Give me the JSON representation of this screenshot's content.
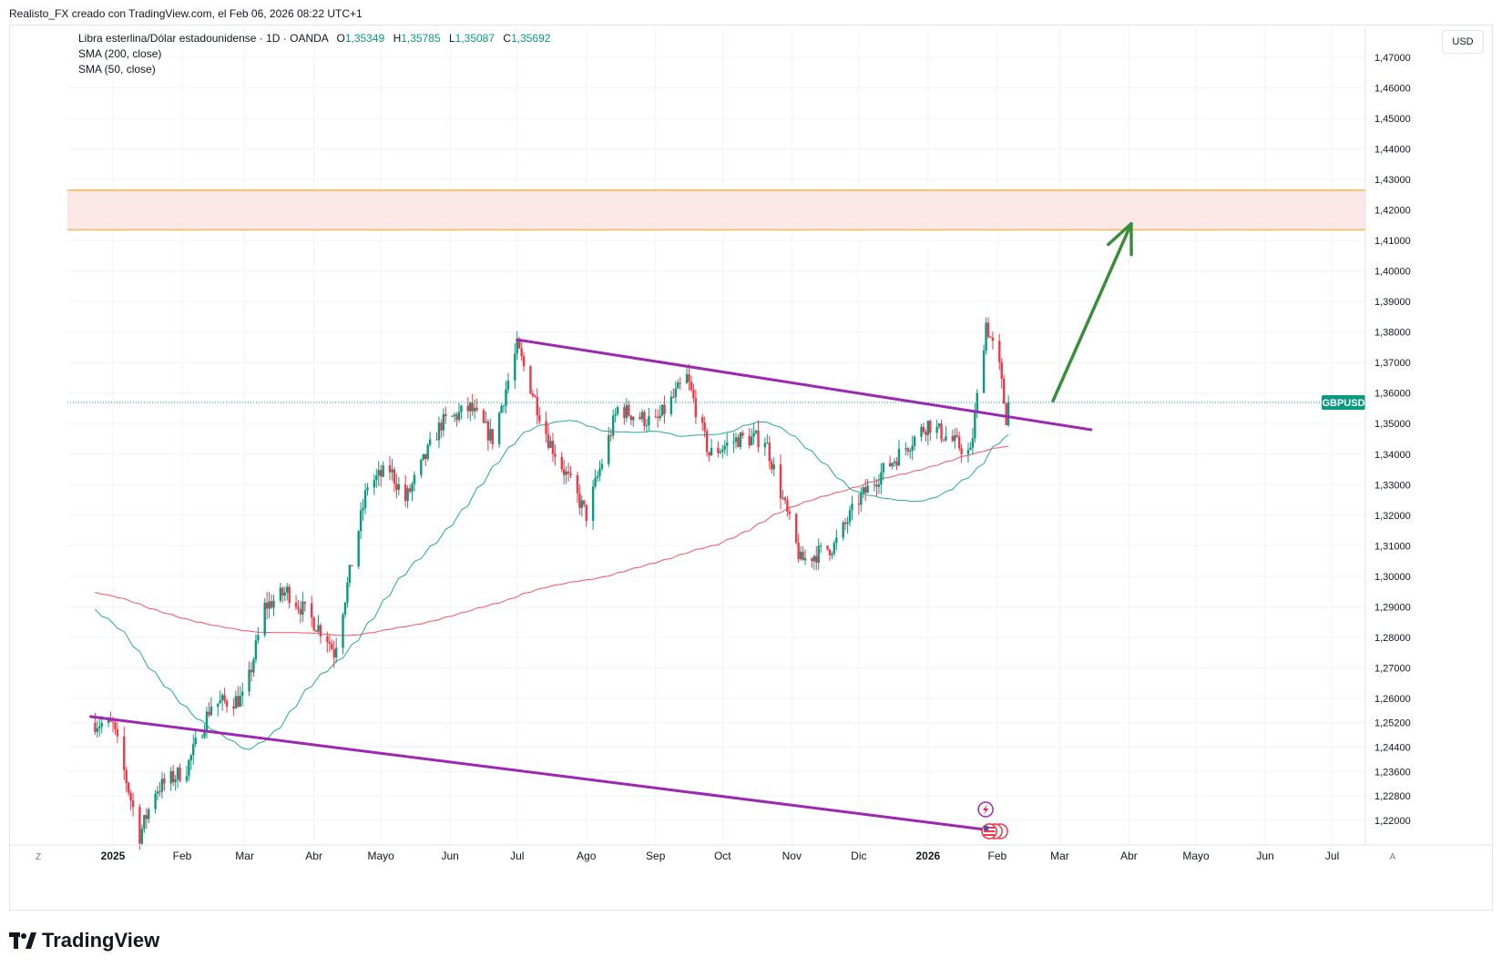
{
  "header": {
    "text": "Realisto_FX creado con TradingView.com, el Feb 06, 2026 08:22 UTC+1"
  },
  "legend": {
    "symbol": "Libra esterlina/Dólar estadounidense · 1D · OANDA",
    "open_label": "O",
    "open": "1,35349",
    "high_label": "H",
    "high": "1,35785",
    "low_label": "L",
    "low": "1,35087",
    "close_label": "C",
    "close": "1,35692",
    "sma200": "SMA (200, close)",
    "sma50": "SMA (50, close)"
  },
  "currency_button": "USD",
  "price_badge": "GBPUSD",
  "footer": {
    "brand": "TradingView",
    "icon": "tradingview-logo-icon"
  },
  "timeaxis_buttons": {
    "left": "Z",
    "right": "A"
  },
  "colors": {
    "up": "#089981",
    "down": "#f23645",
    "sma50": "#22ab94",
    "sma200": "#f7525f",
    "trendline": "#9c27b0",
    "arrow": "#388e3c",
    "zone_fill": "#fde8e8",
    "zone_border": "#ffb74d"
  },
  "chart_data": {
    "type": "candlestick",
    "symbol": "GBPUSD",
    "ylim": [
      1.212,
      1.478
    ],
    "y_ticks": [
      "1,47000",
      "1,46000",
      "1,45000",
      "1,44000",
      "1,43000",
      "1,42000",
      "1,41000",
      "1,40000",
      "1,39000",
      "1,38000",
      "1,37000",
      "1,36000",
      "1,35000",
      "1,34000",
      "1,33000",
      "1,32000",
      "1,31000",
      "1,30000",
      "1,29000",
      "1,28000",
      "1,27000",
      "1,26000",
      "1,25200",
      "1,24400",
      "1,23600",
      "1,22800",
      "1,22000"
    ],
    "x_ticks": [
      "2025",
      "Feb",
      "Mar",
      "Abr",
      "Mayo",
      "Jun",
      "Jul",
      "Ago",
      "Sep",
      "Oct",
      "Nov",
      "Dic",
      "2026",
      "Feb",
      "Mar",
      "Abr",
      "Mayo",
      "Jun",
      "Jul"
    ],
    "last_price": 1.35692,
    "keypoints": [
      [
        "2024-12-24",
        1.252
      ],
      [
        "2025-01-01",
        1.251
      ],
      [
        "2025-01-13",
        1.215
      ],
      [
        "2025-01-20",
        1.23
      ],
      [
        "2025-02-03",
        1.237
      ],
      [
        "2025-02-14",
        1.258
      ],
      [
        "2025-03-01",
        1.26
      ],
      [
        "2025-03-10",
        1.29
      ],
      [
        "2025-03-20",
        1.295
      ],
      [
        "2025-04-07",
        1.28
      ],
      [
        "2025-04-10",
        1.275
      ],
      [
        "2025-04-25",
        1.33
      ],
      [
        "2025-05-05",
        1.335
      ],
      [
        "2025-05-12",
        1.325
      ],
      [
        "2025-05-28",
        1.35
      ],
      [
        "2025-06-10",
        1.355
      ],
      [
        "2025-06-20",
        1.345
      ],
      [
        "2025-07-01",
        1.375
      ],
      [
        "2025-07-15",
        1.345
      ],
      [
        "2025-08-01",
        1.32
      ],
      [
        "2025-08-15",
        1.355
      ],
      [
        "2025-09-01",
        1.35
      ],
      [
        "2025-09-15",
        1.365
      ],
      [
        "2025-09-25",
        1.34
      ],
      [
        "2025-10-08",
        1.345
      ],
      [
        "2025-10-20",
        1.345
      ],
      [
        "2025-11-01",
        1.315
      ],
      [
        "2025-11-05",
        1.305
      ],
      [
        "2025-11-20",
        1.31
      ],
      [
        "2025-12-01",
        1.325
      ],
      [
        "2025-12-10",
        1.333
      ],
      [
        "2026-01-01",
        1.35
      ],
      [
        "2026-01-20",
        1.34
      ],
      [
        "2026-01-27",
        1.383
      ],
      [
        "2026-02-02",
        1.368
      ],
      [
        "2026-02-05",
        1.352
      ],
      [
        "2026-02-06",
        1.35692
      ]
    ],
    "zone": {
      "from": 1.4135,
      "to": 1.4265
    },
    "trendlines": [
      {
        "name": "upper",
        "from": [
          "2025-07-01",
          1.3775
        ],
        "to": [
          "2026-03-15",
          1.348
        ]
      },
      {
        "name": "lower",
        "from": [
          "2024-12-22",
          1.254
        ],
        "to": [
          "2026-02-01",
          1.2165
        ]
      }
    ],
    "arrow": {
      "from": [
        "2026-02-26",
        1.3575
      ],
      "to": [
        "2026-04-02",
        1.4155
      ]
    },
    "grid": true
  }
}
